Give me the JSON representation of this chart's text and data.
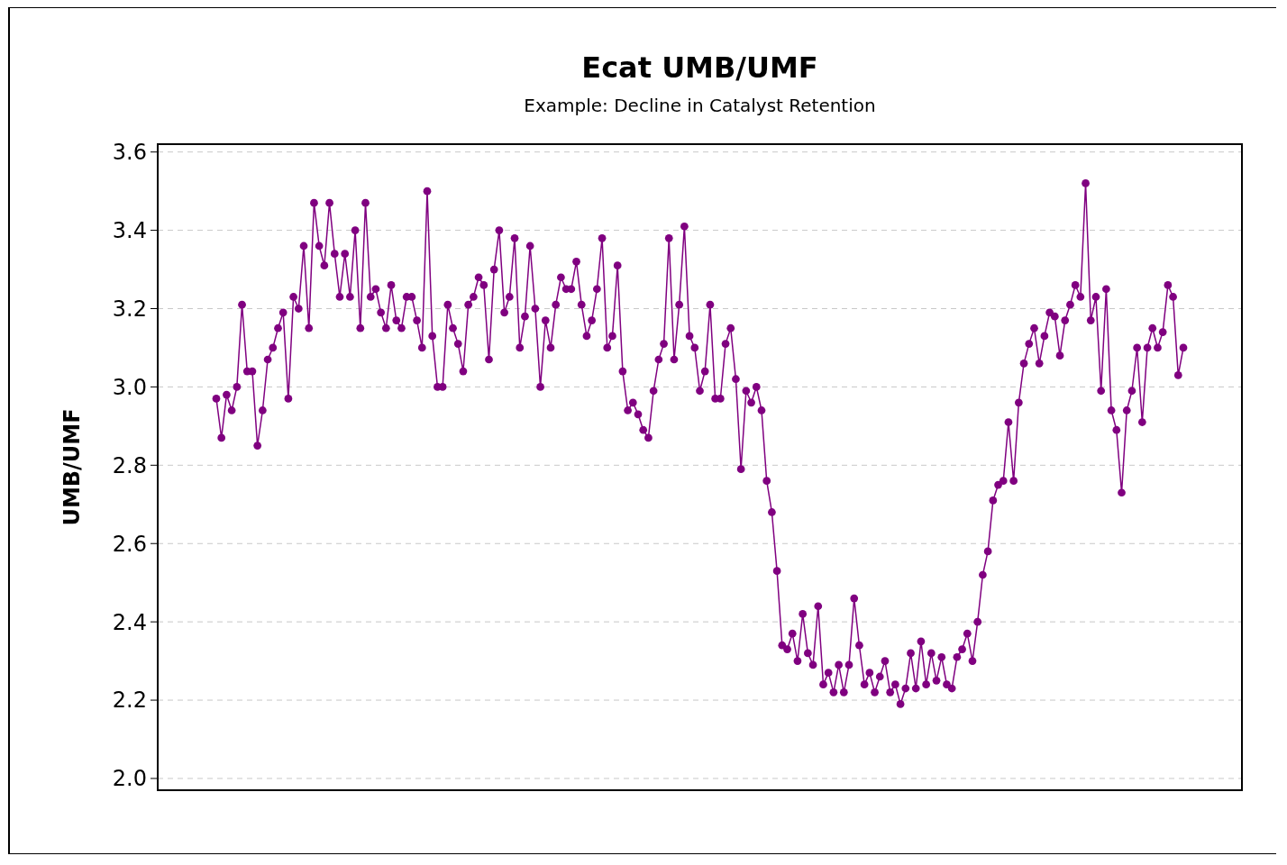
{
  "chart_data": {
    "type": "line",
    "title": "Ecat UMB/UMF",
    "subtitle": "Example: Decline in Catalyst Retention",
    "ylabel": "UMB/UMF",
    "categories": [
      null,
      null,
      null,
      null,
      null,
      null,
      null,
      null,
      null,
      null,
      null,
      null,
      null,
      null,
      null,
      null,
      null,
      null,
      null,
      null,
      null,
      null,
      null,
      null,
      null,
      null,
      null,
      null,
      null,
      null,
      null,
      null,
      null,
      null,
      null,
      null,
      null,
      null,
      null,
      null,
      null,
      null,
      null,
      null,
      null,
      null,
      null,
      null,
      null,
      null,
      null,
      null,
      null,
      null,
      null,
      null,
      null,
      null,
      null,
      null,
      null,
      null,
      null,
      null,
      null,
      null,
      null,
      null,
      null,
      null,
      null,
      null,
      null,
      null,
      null,
      null,
      null,
      null,
      null,
      null,
      null,
      null,
      null,
      null,
      null,
      null,
      null,
      null,
      null,
      null,
      null,
      null,
      null,
      null,
      null,
      null,
      null,
      null,
      null,
      null,
      null,
      null,
      null,
      null,
      null,
      null,
      null,
      null,
      null,
      null,
      null,
      null,
      null,
      null,
      null,
      null,
      null,
      null,
      null,
      null,
      null,
      null,
      null,
      null,
      null,
      null,
      null,
      null,
      null,
      null,
      null,
      null,
      null,
      null,
      null,
      null,
      null,
      null,
      null,
      null,
      null,
      null,
      null,
      null,
      null,
      null,
      null,
      null,
      null,
      null,
      null,
      null,
      null,
      null,
      null,
      null,
      null,
      null,
      null,
      null,
      null,
      null,
      null,
      null,
      null,
      null,
      null,
      null,
      null,
      null,
      null,
      null,
      null,
      null,
      null,
      null,
      null,
      null,
      null,
      null,
      null,
      null,
      null,
      null,
      null,
      null,
      null,
      null,
      null
    ],
    "ylim": [
      1.97,
      3.62
    ],
    "yticks": [
      {
        "value": 2,
        "label": "2.0"
      },
      2.2,
      2.4,
      2.6,
      2.8,
      {
        "value": 3,
        "label": "3.0"
      },
      3.2,
      3.4,
      3.6
    ],
    "grid": "y",
    "marker": "circle",
    "line_style": "solid",
    "series": [
      {
        "color": "#800080",
        "values": [
          2.97,
          2.87,
          2.98,
          2.94,
          3.0,
          3.21,
          3.04,
          3.04,
          2.85,
          2.94,
          3.07,
          3.1,
          3.15,
          3.19,
          2.97,
          3.23,
          3.2,
          3.36,
          3.15,
          3.47,
          3.36,
          3.31,
          3.47,
          3.34,
          3.23,
          3.34,
          3.23,
          3.4,
          3.15,
          3.47,
          3.23,
          3.25,
          3.19,
          3.15,
          3.26,
          3.17,
          3.15,
          3.23,
          3.23,
          3.17,
          3.1,
          3.5,
          3.13,
          3.0,
          3.0,
          3.21,
          3.15,
          3.11,
          3.04,
          3.21,
          3.23,
          3.28,
          3.26,
          3.07,
          3.3,
          3.4,
          3.19,
          3.23,
          3.38,
          3.1,
          3.18,
          3.36,
          3.2,
          3.0,
          3.17,
          3.1,
          3.21,
          3.28,
          3.25,
          3.25,
          3.32,
          3.21,
          3.13,
          3.17,
          3.25,
          3.38,
          3.1,
          3.13,
          3.31,
          3.04,
          2.94,
          2.96,
          2.93,
          2.89,
          2.87,
          2.99,
          3.07,
          3.11,
          3.38,
          3.07,
          3.21,
          3.41,
          3.13,
          3.1,
          2.99,
          3.04,
          3.21,
          2.97,
          2.97,
          3.11,
          3.15,
          3.02,
          2.79,
          2.99,
          2.96,
          3.0,
          2.94,
          2.76,
          2.68,
          2.53,
          2.34,
          2.33,
          2.37,
          2.3,
          2.42,
          2.32,
          2.29,
          2.44,
          2.24,
          2.27,
          2.22,
          2.29,
          2.22,
          2.29,
          2.46,
          2.34,
          2.24,
          2.27,
          2.22,
          2.26,
          2.3,
          2.22,
          2.24,
          2.19,
          2.23,
          2.32,
          2.23,
          2.35,
          2.24,
          2.32,
          2.25,
          2.31,
          2.24,
          2.23,
          2.31,
          2.33,
          2.37,
          2.3,
          2.4,
          2.52,
          2.58,
          2.71,
          2.75,
          2.76,
          2.91,
          2.76,
          2.96,
          3.06,
          3.11,
          3.15,
          3.06,
          3.13,
          3.19,
          3.18,
          3.08,
          3.17,
          3.21,
          3.26,
          3.23,
          3.52,
          3.17,
          3.23,
          2.99,
          3.25,
          2.94,
          2.89,
          2.73,
          2.94,
          2.99,
          3.1,
          2.91,
          3.1,
          3.15,
          3.1,
          3.14,
          3.26,
          3.23,
          3.03,
          3.1
        ]
      }
    ]
  }
}
